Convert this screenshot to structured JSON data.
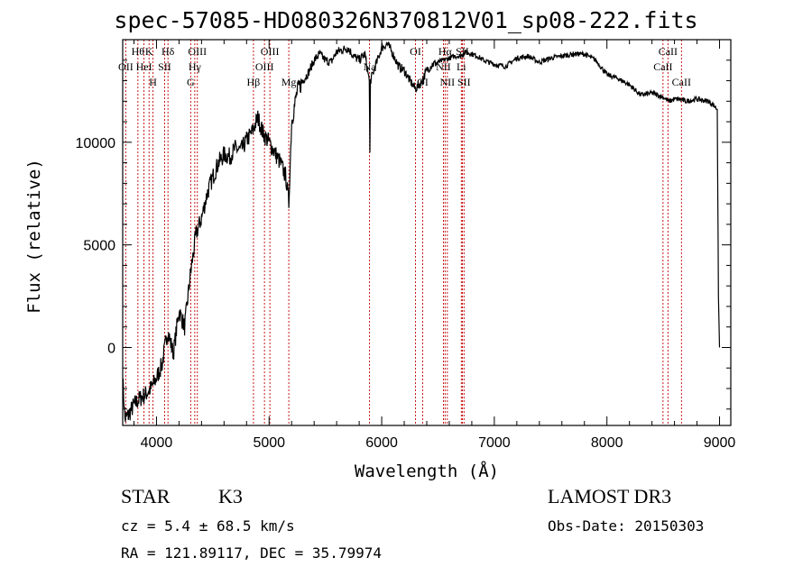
{
  "title": "spec-57085-HD080326N370812V01_sp08-222.fits",
  "chart_data": {
    "type": "line",
    "xlabel": "Wavelength (Å)",
    "ylabel": "Flux (relative)",
    "xlim": [
      3700,
      9100
    ],
    "ylim": [
      -3800,
      15000
    ],
    "xticks": [
      4000,
      5000,
      6000,
      7000,
      8000,
      9000
    ],
    "yticks": [
      0,
      5000,
      10000
    ],
    "series": [
      {
        "x": [
          3700,
          3720,
          3750,
          3800,
          3850,
          3900,
          3950,
          4000,
          4050,
          4100,
          4150,
          4200,
          4250,
          4300,
          4350,
          4400,
          4450,
          4500,
          4550,
          4600,
          4650,
          4700,
          4750,
          4800,
          4850,
          4900,
          4950,
          5000,
          5050,
          5100,
          5150,
          5175,
          5200,
          5250,
          5300,
          5350,
          5400,
          5450,
          5500,
          5550,
          5600,
          5650,
          5700,
          5750,
          5800,
          5850,
          5890,
          5895,
          5900,
          5950,
          6000,
          6050,
          6100,
          6150,
          6200,
          6250,
          6300,
          6350,
          6400,
          6450,
          6500,
          6550,
          6600,
          6650,
          6700,
          6750,
          6800,
          6850,
          6900,
          6950,
          7000,
          7100,
          7200,
          7300,
          7400,
          7500,
          7600,
          7700,
          7800,
          7900,
          8000,
          8100,
          8200,
          8300,
          8400,
          8500,
          8550,
          8600,
          8650,
          8700,
          8800,
          8900,
          8950,
          8980,
          8990,
          9000
        ],
        "y": [
          -1500,
          -3500,
          -3300,
          -2800,
          -2500,
          -2300,
          -2000,
          -1500,
          -800,
          800,
          -300,
          1800,
          1000,
          3500,
          5500,
          6300,
          7500,
          8300,
          9000,
          9400,
          9300,
          9700,
          9600,
          10100,
          10500,
          11200,
          10400,
          10000,
          9500,
          9000,
          8300,
          7000,
          11000,
          12500,
          13000,
          13400,
          14000,
          14300,
          14000,
          13900,
          14400,
          14500,
          14600,
          14200,
          14000,
          14300,
          13000,
          9500,
          13000,
          13800,
          14600,
          14800,
          14300,
          13700,
          13500,
          13000,
          12600,
          12900,
          13500,
          13800,
          13900,
          14000,
          14100,
          14200,
          14200,
          14400,
          14300,
          14200,
          14000,
          13900,
          13800,
          13700,
          14100,
          14200,
          13900,
          14100,
          14200,
          14300,
          14300,
          14000,
          13300,
          13100,
          12800,
          12300,
          12400,
          12200,
          12000,
          12100,
          12100,
          12000,
          12100,
          12000,
          11800,
          11600,
          2500,
          0
        ]
      }
    ],
    "lines": [
      {
        "wl": 3727,
        "top": "OII",
        "row": 2
      },
      {
        "wl": 3835,
        "top": "Hθ",
        "row": 1
      },
      {
        "wl": 3889,
        "top": "HeI",
        "row": 2
      },
      {
        "wl": 3934,
        "top": "K",
        "row": 1
      },
      {
        "wl": 3969,
        "top": "H",
        "row": 3
      },
      {
        "wl": 4072,
        "top": "SII",
        "row": 2
      },
      {
        "wl": 4102,
        "top": "Hδ",
        "row": 1
      },
      {
        "wl": 4304,
        "top": "G",
        "row": 3
      },
      {
        "wl": 4340,
        "top": "Hγ",
        "row": 2
      },
      {
        "wl": 4363,
        "top": "OIII",
        "row": 1
      },
      {
        "wl": 4861,
        "top": "Hβ",
        "row": 3
      },
      {
        "wl": 4959,
        "top": "OIII",
        "row": 2
      },
      {
        "wl": 5007,
        "top": "OIII",
        "row": 1
      },
      {
        "wl": 5175,
        "top": "Mg",
        "row": 3
      },
      {
        "wl": 5892,
        "top": "Na",
        "row": 2
      },
      {
        "wl": 6300,
        "top": "OI",
        "row": 1
      },
      {
        "wl": 6364,
        "top": "OI",
        "row": 3
      },
      {
        "wl": 6548,
        "top": "NII",
        "row": 2
      },
      {
        "wl": 6563,
        "top": "Hα",
        "row": 1
      },
      {
        "wl": 6583,
        "top": "NII",
        "row": 3
      },
      {
        "wl": 6707,
        "top": "Li",
        "row": 2
      },
      {
        "wl": 6716,
        "top": "SII",
        "row": 1
      },
      {
        "wl": 6731,
        "top": "SII",
        "row": 3
      },
      {
        "wl": 8498,
        "top": "CaII",
        "row": 2
      },
      {
        "wl": 8542,
        "top": "CaII",
        "row": 1
      },
      {
        "wl": 8662,
        "top": "CaII",
        "row": 3
      }
    ]
  },
  "info": {
    "class": "STAR",
    "subclass": "K3",
    "survey": "LAMOST DR3",
    "cz": "cz = 5.4 ± 68.5 km/s",
    "obsdate": "Obs-Date: 20150303",
    "radec": "RA = 121.89117, DEC =  35.79974"
  }
}
